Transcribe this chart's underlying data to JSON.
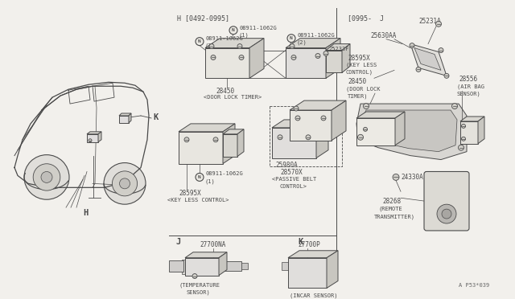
{
  "bg_color": "#f2f0ec",
  "line_color": "#4a4a4a",
  "fig_note": "A P53*039",
  "section_H": "H [0492-0995]",
  "section_J_right": "[0995-  J",
  "fs_label": 6.0,
  "fs_small": 5.5,
  "fs_tiny": 5.0,
  "fs_big": 7.5
}
